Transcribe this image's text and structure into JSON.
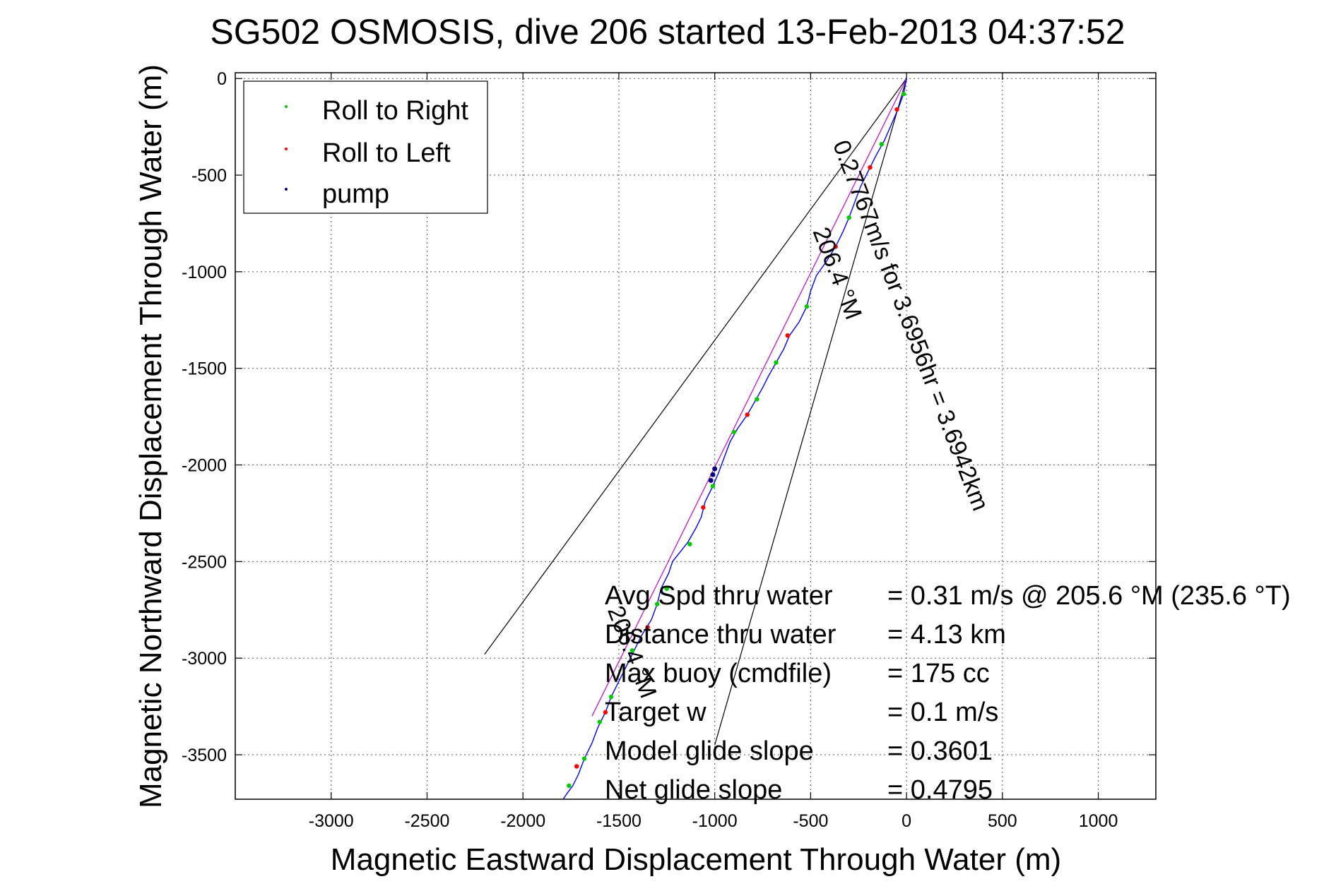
{
  "chart_data": {
    "type": "line",
    "title": "SG502 OSMOSIS, dive 206 started 13-Feb-2013 04:37:52",
    "xlabel": "Magnetic Eastward Displacement Through Water (m)",
    "ylabel": "Magnetic Northward Displacement Through Water (m)",
    "xlim": [
      -3500,
      1300
    ],
    "ylim": [
      -3730,
      30
    ],
    "xticks": [
      -3000,
      -2500,
      -2000,
      -1500,
      -1000,
      -500,
      0,
      500,
      1000
    ],
    "yticks": [
      0,
      -500,
      -1000,
      -1500,
      -2000,
      -2500,
      -3000,
      -3500
    ],
    "grid": true,
    "legend": {
      "placement": "top-left",
      "entries": [
        {
          "label": "Roll to Right",
          "color": "#00cc00"
        },
        {
          "label": "Roll to Left",
          "color": "#ff0000"
        },
        {
          "label": "pump",
          "color": "#000080"
        }
      ]
    },
    "track": {
      "color": "#0000ff",
      "x": [
        0,
        -15,
        -45,
        -80,
        -115,
        -160,
        -200,
        -240,
        -270,
        -300,
        -330,
        -370,
        -420,
        -470,
        -500,
        -520,
        -560,
        -610,
        -640,
        -680,
        -720,
        -750,
        -790,
        -830,
        -880,
        -920,
        -950,
        -980,
        -1010,
        -1050,
        -1070,
        -1100,
        -1140,
        -1180,
        -1220,
        -1240,
        -1280,
        -1300,
        -1330,
        -1380,
        -1420,
        -1460,
        -1500,
        -1540,
        -1570,
        -1610,
        -1640,
        -1680,
        -1710,
        -1740,
        -1770,
        -1790
      ],
      "y": [
        0,
        -80,
        -160,
        -240,
        -320,
        -400,
        -480,
        -560,
        -640,
        -720,
        -790,
        -870,
        -950,
        -1020,
        -1100,
        -1180,
        -1260,
        -1330,
        -1400,
        -1470,
        -1540,
        -1600,
        -1670,
        -1740,
        -1810,
        -1880,
        -1960,
        -2040,
        -2110,
        -2190,
        -2270,
        -2330,
        -2400,
        -2450,
        -2500,
        -2560,
        -2640,
        -2720,
        -2800,
        -2880,
        -2960,
        -3040,
        -3120,
        -3200,
        -3280,
        -3360,
        -3440,
        -3520,
        -3600,
        -3660,
        -3700,
        -3730
      ]
    },
    "roll_right_points": {
      "x": [
        -15,
        -130,
        -300,
        -520,
        -680,
        -780,
        -900,
        -1010,
        -1130,
        -1250,
        -1300,
        -1430,
        -1540,
        -1600,
        -1680,
        -1760
      ],
      "y": [
        -80,
        -340,
        -720,
        -1180,
        -1470,
        -1660,
        -1830,
        -2110,
        -2410,
        -2640,
        -2720,
        -2960,
        -3200,
        -3330,
        -3520,
        -3660
      ]
    },
    "roll_left_points": {
      "x": [
        -50,
        -190,
        -370,
        -620,
        -830,
        -1060,
        -1350,
        -1570,
        -1720
      ],
      "y": [
        -160,
        -460,
        -870,
        -1330,
        -1740,
        -2220,
        -2840,
        -3280,
        -3560
      ]
    },
    "pump_points": {
      "x": [
        -1000,
        -1010,
        -1020
      ],
      "y": [
        -2020,
        -2050,
        -2080
      ]
    },
    "reference_lines": [
      {
        "color": "#000000",
        "x": [
          0,
          -2200
        ],
        "y": [
          0,
          -2980
        ]
      },
      {
        "color": "#000000",
        "x": [
          0,
          -1000
        ],
        "y": [
          0,
          -3450
        ]
      },
      {
        "color": "#cc00cc",
        "x": [
          0,
          -1640
        ],
        "y": [
          0,
          -3300
        ]
      }
    ],
    "annotations": [
      {
        "text": "206.4 °M",
        "x": -490,
        "y": -790,
        "angle": 69
      },
      {
        "text": "0.27767m/s for 3.6956hr = 3.6942km",
        "x": -385,
        "y": -340,
        "angle": 69
      },
      {
        "text": "206.4 °M",
        "x": -1560,
        "y": -2750,
        "angle": 69
      }
    ],
    "stats": {
      "labels": [
        "Avg Spd thru water",
        "Distance thru water",
        "Max buoy (cmdfile)",
        "Target w",
        "Model glide slope",
        "Net glide slope"
      ],
      "values": [
        "=  0.31 m/s @ 205.6 °M (235.6 °T)",
        "=  4.13 km",
        "= 175 cc",
        "= 0.1 m/s",
        "= 0.3601",
        "= 0.4795"
      ]
    }
  }
}
